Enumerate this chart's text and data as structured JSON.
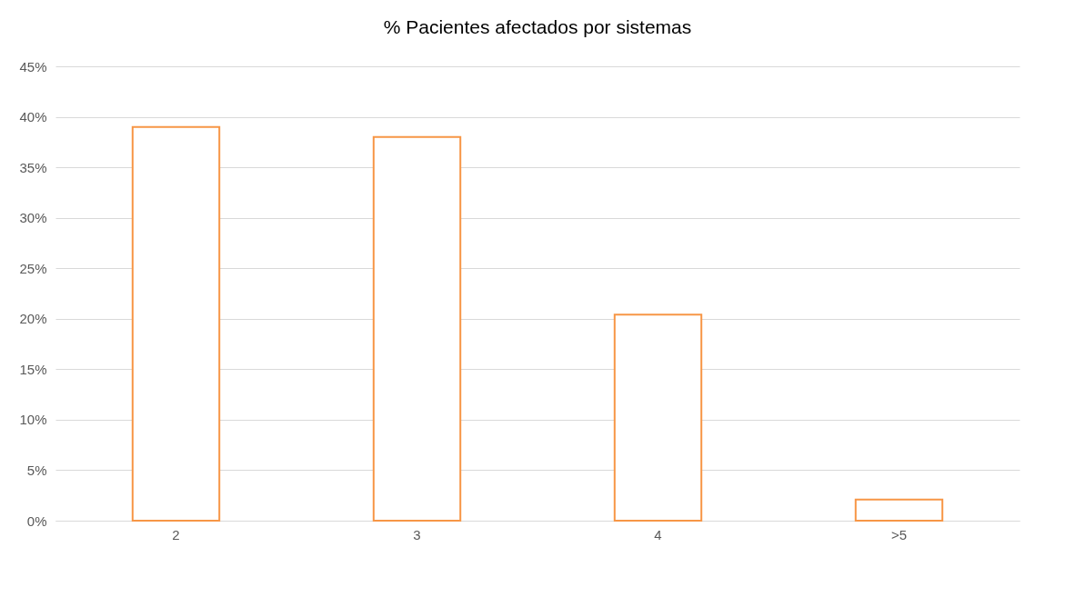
{
  "chart_data": {
    "type": "bar",
    "title": "% Pacientes afectados por sistemas",
    "categories": [
      "2",
      "3",
      "4",
      ">5"
    ],
    "series": [
      {
        "color": "#f79646",
        "values": [
          39,
          38,
          20.4,
          2.1
        ]
      }
    ],
    "ylim": [
      0,
      45
    ],
    "yticks": [
      {
        "value": 0,
        "label": "0%"
      },
      {
        "value": 5,
        "label": "5%"
      },
      {
        "value": 10,
        "label": "10%"
      },
      {
        "value": 15,
        "label": "15%"
      },
      {
        "value": 20,
        "label": "20%"
      },
      {
        "value": 25,
        "label": "25%"
      },
      {
        "value": 30,
        "label": "30%"
      },
      {
        "value": 35,
        "label": "35%"
      },
      {
        "value": 40,
        "label": "40%"
      },
      {
        "value": 45,
        "label": "45%"
      }
    ],
    "grid": "y"
  }
}
